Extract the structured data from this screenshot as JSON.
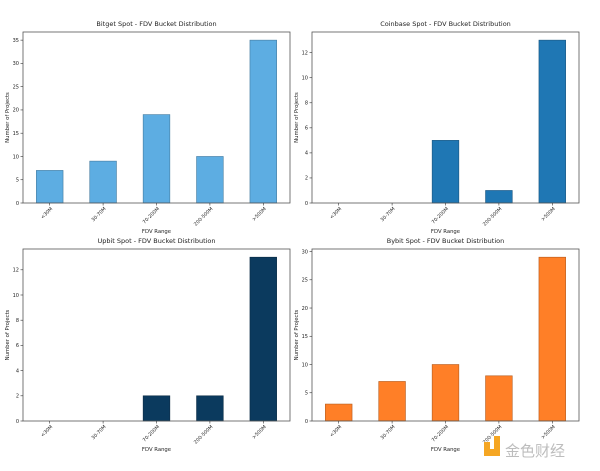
{
  "chart_data": [
    {
      "type": "bar",
      "title": "Bitget Spot - FDV Bucket Distribution",
      "xlabel": "FDV Range",
      "ylabel": "Number of Projects",
      "categories": [
        "<30M",
        "30-70M",
        "70-200M",
        "200-500M",
        ">500M"
      ],
      "values": [
        7,
        9,
        19,
        10,
        35
      ],
      "ylim": [
        0,
        36.75
      ],
      "yticks": [
        0,
        5,
        10,
        15,
        20,
        25,
        30,
        35
      ],
      "color": "#5DADE2",
      "grid": false
    },
    {
      "type": "bar",
      "title": "Coinbase Spot - FDV Bucket Distribution",
      "xlabel": "FDV Range",
      "ylabel": "Number of Projects",
      "categories": [
        "<30M",
        "30-70M",
        "70-200M",
        "200-500M",
        ">500M"
      ],
      "values": [
        0,
        0,
        5,
        1,
        13
      ],
      "ylim": [
        0,
        13.65
      ],
      "yticks": [
        0,
        2,
        4,
        6,
        8,
        10,
        12
      ],
      "color": "#1F77B4",
      "grid": false
    },
    {
      "type": "bar",
      "title": "Upbit Spot - FDV Bucket Distribution",
      "xlabel": "FDV Range",
      "ylabel": "Number of Projects",
      "categories": [
        "<30M",
        "30-70M",
        "70-200M",
        "200-500M",
        ">500M"
      ],
      "values": [
        0,
        0,
        2,
        2,
        13
      ],
      "ylim": [
        0,
        13.65
      ],
      "yticks": [
        0,
        2,
        4,
        6,
        8,
        10,
        12
      ],
      "color": "#0B3A5E",
      "grid": false
    },
    {
      "type": "bar",
      "title": "Bybit Spot - FDV Bucket Distribution",
      "xlabel": "FDV Range",
      "ylabel": "Number of Projects",
      "categories": [
        "<30M",
        "30-70M",
        "70-200M",
        "200-500M",
        ">500M"
      ],
      "values": [
        3,
        7,
        10,
        8,
        29
      ],
      "ylim": [
        0,
        30.45
      ],
      "yticks": [
        0,
        5,
        10,
        15,
        20,
        25,
        30
      ],
      "color": "#FF7F27",
      "grid": false
    }
  ],
  "watermark": {
    "text": "金色财经",
    "color": "#F5A623"
  }
}
